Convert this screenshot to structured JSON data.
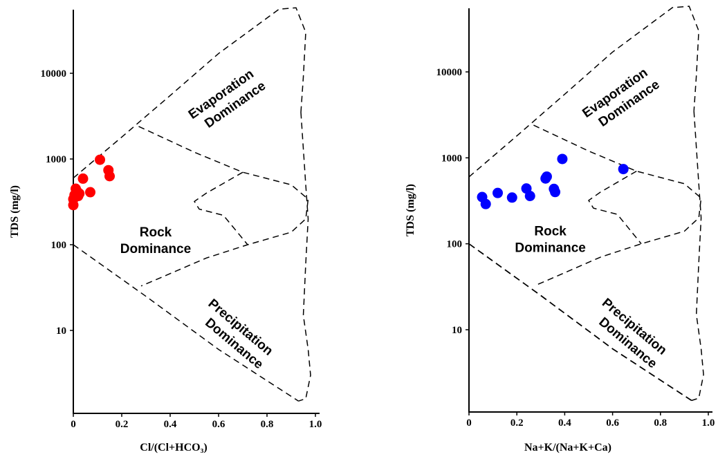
{
  "chart_data": [
    {
      "type": "scatter",
      "xlabel": "Cl/(Cl+HCO₃)",
      "ylabel": "TDS (mg/l)",
      "xlim": [
        0,
        1.0
      ],
      "ylim": [
        1,
        60000
      ],
      "yscale": "log",
      "x_ticks": [
        "0",
        "0.2",
        "0.4",
        "0.6",
        "0.8",
        "1.0"
      ],
      "y_ticks": [
        "10",
        "100",
        "1000",
        "10000"
      ],
      "marker_color": "#ff0000",
      "regions": {
        "evaporation": [
          "Evaporation",
          "Dominance"
        ],
        "rock": [
          "Rock",
          "Dominance"
        ],
        "precipitation": [
          "Precipitation",
          "Dominance"
        ]
      },
      "points": [
        {
          "x": 0.0,
          "y": 290
        },
        {
          "x": 0.0,
          "y": 340
        },
        {
          "x": 0.005,
          "y": 380
        },
        {
          "x": 0.01,
          "y": 450
        },
        {
          "x": 0.015,
          "y": 420
        },
        {
          "x": 0.02,
          "y": 370
        },
        {
          "x": 0.025,
          "y": 395
        },
        {
          "x": 0.04,
          "y": 590
        },
        {
          "x": 0.07,
          "y": 410
        },
        {
          "x": 0.11,
          "y": 980
        },
        {
          "x": 0.145,
          "y": 740
        },
        {
          "x": 0.15,
          "y": 630
        }
      ]
    },
    {
      "type": "scatter",
      "xlabel": "Na+K/(Na+K+Ca)",
      "ylabel": "TDS (mg/l)",
      "xlim": [
        0,
        1.0
      ],
      "ylim": [
        1,
        60000
      ],
      "yscale": "log",
      "x_ticks": [
        "0",
        "0.2",
        "0.4",
        "0.6",
        "0.8",
        "1.0"
      ],
      "y_ticks": [
        "10",
        "100",
        "1000",
        "10000"
      ],
      "marker_color": "#0000ff",
      "regions": {
        "evaporation": [
          "Evaporation",
          "Dominance"
        ],
        "rock": [
          "Rock",
          "Dominance"
        ],
        "precipitation": [
          "Precipitation",
          "Dominance"
        ]
      },
      "points": [
        {
          "x": 0.055,
          "y": 350
        },
        {
          "x": 0.07,
          "y": 290
        },
        {
          "x": 0.12,
          "y": 390
        },
        {
          "x": 0.18,
          "y": 345
        },
        {
          "x": 0.24,
          "y": 440
        },
        {
          "x": 0.255,
          "y": 360
        },
        {
          "x": 0.32,
          "y": 575
        },
        {
          "x": 0.325,
          "y": 605
        },
        {
          "x": 0.355,
          "y": 435
        },
        {
          "x": 0.36,
          "y": 400
        },
        {
          "x": 0.39,
          "y": 970
        },
        {
          "x": 0.645,
          "y": 740
        }
      ]
    }
  ]
}
